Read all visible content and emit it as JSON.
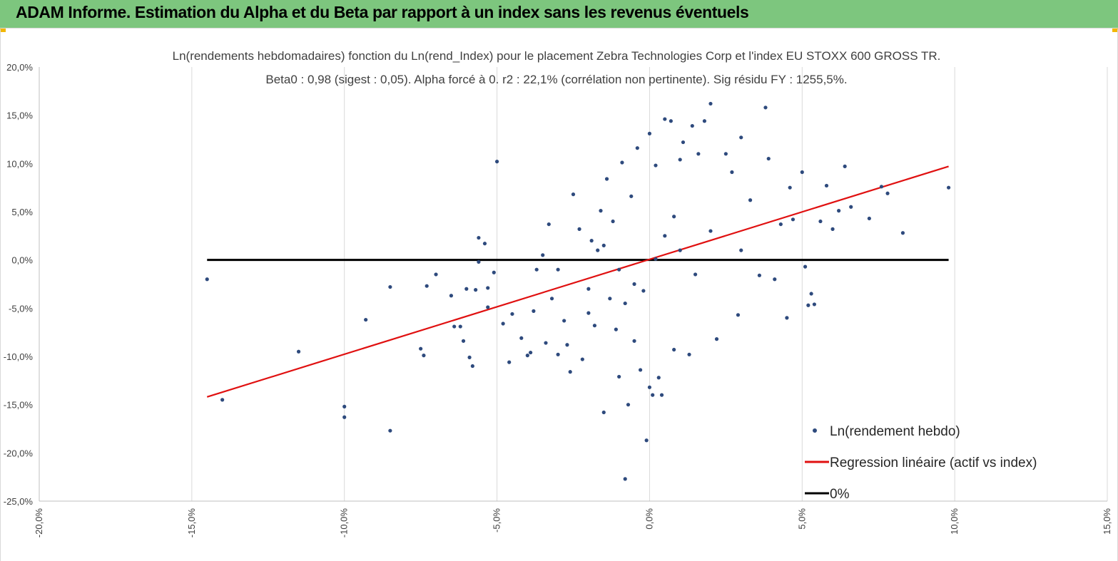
{
  "banner": {
    "title": "ADAM Informe. Estimation du Alpha et du Beta par rapport à un index sans les revenus éventuels",
    "background": "#7dc67e",
    "corner_color": "#f2b705"
  },
  "chart_data": {
    "type": "scatter",
    "title_line1": "Ln(rendements hebdomadaires) fonction du Ln(rend_Index) pour le placement Zebra Technologies Corp et l'index EU STOXX 600 GROSS TR.",
    "title_line2": "Beta0 : 0,98 (sigest : 0,05). Alpha forcé à 0. r2 : 22,1% (corrélation non pertinente). Sig résidu FY : 1255,5%.",
    "xlim": [
      -20,
      15
    ],
    "ylim": [
      -25,
      20
    ],
    "x_ticks": [
      -20,
      -15,
      -10,
      -5,
      0,
      5,
      10,
      15
    ],
    "x_tick_labels": [
      "-20,0%",
      "-15,0%",
      "-10,0%",
      "-5,0%",
      "0,0%",
      "5,0%",
      "10,0%",
      "15,0%"
    ],
    "y_ticks": [
      20,
      15,
      10,
      5,
      0,
      -5,
      -10,
      -15,
      -20,
      -25
    ],
    "y_tick_labels": [
      "20,0%",
      "15,0%",
      "10,0%",
      "5,0%",
      "0,0%",
      "-5,0%",
      "-10,0%",
      "-15,0%",
      "-20,0%",
      "-25,0%"
    ],
    "grid_vertical": true,
    "grid_horizontal": false,
    "legend_position": "bottom-right",
    "series": [
      {
        "name": "Ln(rendement hebdo)",
        "kind": "scatter",
        "color": "#2e4a7d",
        "points": [
          [
            -14.5,
            -2.0
          ],
          [
            -14.0,
            -14.5
          ],
          [
            -11.5,
            -9.5
          ],
          [
            -10.0,
            -15.2
          ],
          [
            -10.0,
            -16.3
          ],
          [
            -9.3,
            -6.2
          ],
          [
            -8.5,
            -2.8
          ],
          [
            -8.5,
            -17.7
          ],
          [
            -7.5,
            -9.2
          ],
          [
            -7.4,
            -9.9
          ],
          [
            -7.3,
            -2.7
          ],
          [
            -7.0,
            -1.5
          ],
          [
            -6.5,
            -3.7
          ],
          [
            -6.4,
            -6.9
          ],
          [
            -6.2,
            -6.9
          ],
          [
            -6.1,
            -8.4
          ],
          [
            -6.0,
            -3.0
          ],
          [
            -5.9,
            -10.1
          ],
          [
            -5.8,
            -11.0
          ],
          [
            -5.7,
            -3.1
          ],
          [
            -5.6,
            -0.2
          ],
          [
            -5.6,
            2.3
          ],
          [
            -5.4,
            1.7
          ],
          [
            -5.3,
            -4.9
          ],
          [
            -5.3,
            -2.9
          ],
          [
            -5.0,
            10.2
          ],
          [
            -5.1,
            -1.3
          ],
          [
            -4.8,
            -6.6
          ],
          [
            -4.6,
            -10.6
          ],
          [
            -4.5,
            -5.6
          ],
          [
            -4.2,
            -8.1
          ],
          [
            -4.0,
            -9.9
          ],
          [
            -3.9,
            -9.6
          ],
          [
            -3.8,
            -5.3
          ],
          [
            -3.7,
            -1.0
          ],
          [
            -3.5,
            0.5
          ],
          [
            -3.4,
            -8.6
          ],
          [
            -3.3,
            3.7
          ],
          [
            -3.2,
            -4.0
          ],
          [
            -3.0,
            -9.8
          ],
          [
            -2.8,
            -6.3
          ],
          [
            -2.7,
            -8.8
          ],
          [
            -2.6,
            -11.6
          ],
          [
            -2.5,
            6.8
          ],
          [
            -2.3,
            3.2
          ],
          [
            -2.2,
            -10.3
          ],
          [
            -2.0,
            -5.5
          ],
          [
            -1.9,
            2.0
          ],
          [
            -1.8,
            -6.8
          ],
          [
            -1.7,
            1.0
          ],
          [
            -1.6,
            5.1
          ],
          [
            -1.5,
            -15.8
          ],
          [
            -1.4,
            8.4
          ],
          [
            -1.3,
            -4.0
          ],
          [
            -1.2,
            4.0
          ],
          [
            -1.1,
            -7.2
          ],
          [
            -1.0,
            -12.1
          ],
          [
            -0.9,
            10.1
          ],
          [
            -0.8,
            -22.7
          ],
          [
            -0.7,
            -15.0
          ],
          [
            -0.6,
            6.6
          ],
          [
            -0.5,
            -8.4
          ],
          [
            -0.4,
            11.6
          ],
          [
            -0.3,
            -11.4
          ],
          [
            -0.2,
            -3.2
          ],
          [
            -0.1,
            -18.7
          ],
          [
            0.0,
            13.1
          ],
          [
            0.0,
            -13.2
          ],
          [
            0.1,
            -14.0
          ],
          [
            0.2,
            9.8
          ],
          [
            0.3,
            -12.2
          ],
          [
            0.4,
            -14.0
          ],
          [
            0.5,
            14.6
          ],
          [
            0.7,
            14.4
          ],
          [
            0.8,
            -9.3
          ],
          [
            1.0,
            10.4
          ],
          [
            1.1,
            12.2
          ],
          [
            1.3,
            -9.8
          ],
          [
            1.4,
            13.9
          ],
          [
            1.6,
            11.0
          ],
          [
            1.8,
            14.4
          ],
          [
            2.0,
            16.2
          ],
          [
            2.2,
            -8.2
          ],
          [
            2.5,
            11.0
          ],
          [
            2.7,
            9.1
          ],
          [
            2.9,
            -5.7
          ],
          [
            3.0,
            12.7
          ],
          [
            3.3,
            6.2
          ],
          [
            3.6,
            -1.6
          ],
          [
            3.8,
            15.8
          ],
          [
            3.9,
            10.5
          ],
          [
            4.1,
            -2.0
          ],
          [
            4.3,
            3.7
          ],
          [
            4.5,
            -6.0
          ],
          [
            4.6,
            7.5
          ],
          [
            4.7,
            4.2
          ],
          [
            5.0,
            9.1
          ],
          [
            5.1,
            -0.7
          ],
          [
            5.2,
            -4.7
          ],
          [
            5.3,
            -3.5
          ],
          [
            5.4,
            -4.6
          ],
          [
            5.6,
            4.0
          ],
          [
            5.8,
            7.7
          ],
          [
            6.0,
            3.2
          ],
          [
            6.2,
            5.1
          ],
          [
            6.4,
            9.7
          ],
          [
            6.6,
            5.5
          ],
          [
            7.2,
            4.3
          ],
          [
            7.6,
            7.6
          ],
          [
            7.8,
            6.9
          ],
          [
            8.3,
            2.8
          ],
          [
            9.8,
            7.5
          ],
          [
            1.0,
            1.0
          ],
          [
            -1.0,
            -1.0
          ],
          [
            0.5,
            2.5
          ],
          [
            -0.5,
            -2.5
          ],
          [
            2.0,
            3.0
          ],
          [
            -2.0,
            -3.0
          ],
          [
            1.5,
            -1.5
          ],
          [
            -1.5,
            1.5
          ],
          [
            0.2,
            0.1
          ],
          [
            3.0,
            1.0
          ],
          [
            -3.0,
            -1.0
          ],
          [
            0.8,
            4.5
          ],
          [
            -0.8,
            -4.5
          ]
        ]
      },
      {
        "name": "Regression linéaire (actif vs index)",
        "kind": "line",
        "color": "#e01010",
        "points": [
          [
            -14.5,
            -14.2
          ],
          [
            9.8,
            9.7
          ]
        ]
      },
      {
        "name": "0%",
        "kind": "line",
        "color": "#000000",
        "points": [
          [
            -14.5,
            0.0
          ],
          [
            9.8,
            0.0
          ]
        ]
      }
    ]
  }
}
